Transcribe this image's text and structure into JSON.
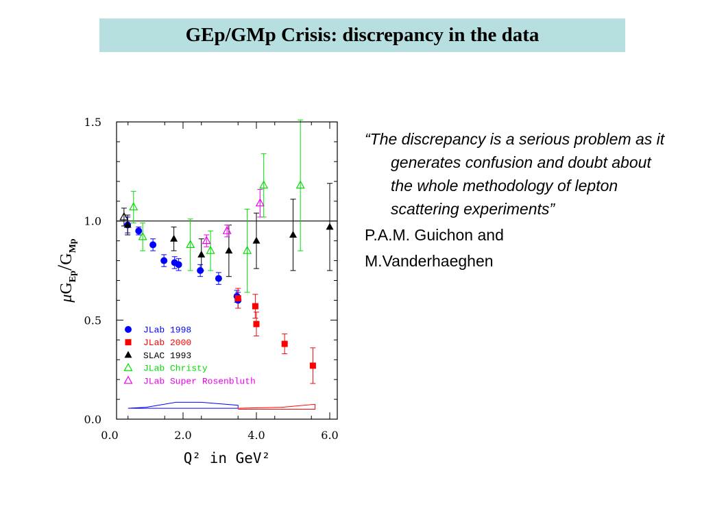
{
  "slide": {
    "title": "GEp/GMp Crisis: discrepancy in the data",
    "quote": "“The discrepancy is a serious problem as it generates confusion and doubt about the whole methodology of lepton scattering experiments”",
    "author_line1": "P.A.M. Guichon and",
    "author_line2": "M.Vanderhaeghen"
  },
  "chart_data": {
    "type": "scatter",
    "xlabel": "Q² in GeV²",
    "ylabel": "μG_Ep/G_Mp",
    "ylabel_parts": {
      "mu": "μ",
      "g1": "G",
      "sub1": "Ep",
      "slash": "/",
      "g2": "G",
      "sub2": "Mp"
    },
    "xlim": [
      0.0,
      6.2
    ],
    "ylim": [
      0.0,
      1.5
    ],
    "x_ticks": [
      "0.0",
      "2.0",
      "4.0",
      "6.0"
    ],
    "x_tick_values": [
      0,
      2,
      4,
      6
    ],
    "y_ticks": [
      "0.0",
      "0.5",
      "1.0",
      "1.5"
    ],
    "y_tick_values": [
      0,
      0.5,
      1.0,
      1.5
    ],
    "reference_line_y": 1.0,
    "series": [
      {
        "name": "JLab 1998",
        "marker": "circle",
        "color": "#0000ff",
        "points": [
          {
            "x": 0.49,
            "y": 0.98,
            "err": 0.04
          },
          {
            "x": 0.79,
            "y": 0.95,
            "err": 0.02
          },
          {
            "x": 1.18,
            "y": 0.88,
            "err": 0.03
          },
          {
            "x": 1.48,
            "y": 0.8,
            "err": 0.03
          },
          {
            "x": 1.77,
            "y": 0.79,
            "err": 0.03
          },
          {
            "x": 1.88,
            "y": 0.78,
            "err": 0.03
          },
          {
            "x": 2.47,
            "y": 0.75,
            "err": 0.03
          },
          {
            "x": 2.97,
            "y": 0.71,
            "err": 0.03
          },
          {
            "x": 3.47,
            "y": 0.62,
            "err": 0.03
          },
          {
            "x": 3.5,
            "y": 0.6,
            "err": 0.04
          }
        ]
      },
      {
        "name": "JLab 2000",
        "marker": "square",
        "color": "#ff0000",
        "points": [
          {
            "x": 3.5,
            "y": 0.61,
            "err": 0.05
          },
          {
            "x": 3.97,
            "y": 0.57,
            "err": 0.06
          },
          {
            "x": 4.0,
            "y": 0.48,
            "err": 0.06
          },
          {
            "x": 4.77,
            "y": 0.38,
            "err": 0.05
          },
          {
            "x": 5.54,
            "y": 0.27,
            "err": 0.09
          }
        ]
      },
      {
        "name": "SLAC 1993",
        "marker": "triangle",
        "color": "#000000",
        "points": [
          {
            "x": 0.49,
            "y": 0.98,
            "err": 0.05
          },
          {
            "x": 1.75,
            "y": 0.91,
            "err": 0.06
          },
          {
            "x": 2.5,
            "y": 0.83,
            "err": 0.08
          },
          {
            "x": 3.25,
            "y": 0.85,
            "err": 0.13
          },
          {
            "x": 4.0,
            "y": 0.9,
            "err": 0.14
          },
          {
            "x": 5.0,
            "y": 0.93,
            "err": 0.18
          },
          {
            "x": 6.0,
            "y": 0.97,
            "err": 0.22
          }
        ]
      },
      {
        "name": "JLab Christy",
        "marker": "triangle-open",
        "color": "#00dd00",
        "points": [
          {
            "x": 0.65,
            "y": 1.07,
            "err": 0.08
          },
          {
            "x": 0.9,
            "y": 0.92,
            "err": 0.07
          },
          {
            "x": 2.2,
            "y": 0.88,
            "err": 0.13
          },
          {
            "x": 2.75,
            "y": 0.85,
            "err": 0.1
          },
          {
            "x": 3.75,
            "y": 0.85,
            "err": 0.21
          },
          {
            "x": 4.2,
            "y": 1.18,
            "err": 0.16
          },
          {
            "x": 5.2,
            "y": 1.18,
            "err": 0.33
          }
        ]
      },
      {
        "name": "JLab Super Rosenbluth",
        "marker": "triangle-open",
        "color": "#ee00ee",
        "points": [
          {
            "x": 2.64,
            "y": 0.9,
            "err": 0.03
          },
          {
            "x": 3.2,
            "y": 0.95,
            "err": 0.03
          },
          {
            "x": 4.1,
            "y": 1.09,
            "err": 0.07
          }
        ]
      },
      {
        "name": "",
        "marker": "triangle-open",
        "color": "#000000",
        "points": [
          {
            "x": 0.39,
            "y": 1.02,
            "err": 0.045
          }
        ]
      }
    ],
    "systematic_bands": [
      {
        "color": "#0000ff",
        "x": [
          0.5,
          1.0,
          1.8,
          2.5,
          3.5,
          3.5,
          0.5
        ],
        "y": [
          0.055,
          0.06,
          0.085,
          0.085,
          0.07,
          0.055,
          0.055
        ]
      },
      {
        "color": "#ff0000",
        "x": [
          3.5,
          4.7,
          5.6,
          5.6,
          3.5
        ],
        "y": [
          0.055,
          0.06,
          0.075,
          0.05,
          0.05
        ]
      }
    ],
    "legend": [
      {
        "label": "JLab 1998",
        "marker": "circle",
        "color": "#0000ff"
      },
      {
        "label": "JLab 2000",
        "marker": "square",
        "color": "#ff0000"
      },
      {
        "label": "SLAC 1993",
        "marker": "triangle",
        "color": "#000000"
      },
      {
        "label": "JLab Christy",
        "marker": "triangle-open",
        "color": "#00dd00"
      },
      {
        "label": "JLab Super Rosenbluth",
        "marker": "triangle-open",
        "color": "#ee00ee"
      }
    ]
  }
}
